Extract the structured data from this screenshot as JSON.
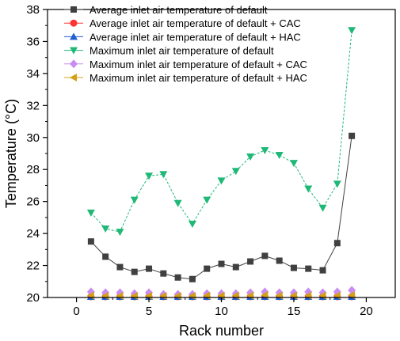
{
  "chart_data": {
    "type": "scatter",
    "xlabel": "Rack number",
    "ylabel": "Temperature (°C)",
    "xlim": [
      -2,
      22
    ],
    "ylim": [
      20,
      38
    ],
    "xticks": [
      0,
      5,
      10,
      15,
      20
    ],
    "yticks": [
      20,
      22,
      24,
      26,
      28,
      30,
      32,
      34,
      36,
      38
    ],
    "grid": false,
    "legend_position": "top-left",
    "series": [
      {
        "name": "Average inlet air temperature of default",
        "marker": "square",
        "color": "#404040",
        "connected": true,
        "x": [
          1,
          2,
          3,
          4,
          5,
          6,
          7,
          8,
          9,
          10,
          11,
          12,
          13,
          14,
          15,
          16,
          17,
          18,
          19
        ],
        "y": [
          23.5,
          22.55,
          21.9,
          21.6,
          21.8,
          21.5,
          21.25,
          21.15,
          21.8,
          22.1,
          21.9,
          22.25,
          22.6,
          22.3,
          21.85,
          21.8,
          21.7,
          23.4,
          30.1
        ]
      },
      {
        "name": "Average inlet air temperature of default + CAC",
        "marker": "circle",
        "color": "#ff3333",
        "connected": false,
        "x": [
          1,
          2,
          3,
          4,
          5,
          6,
          7,
          8,
          9,
          10,
          11,
          12,
          13,
          14,
          15,
          16,
          17,
          18,
          19
        ],
        "y": [
          20.05,
          20.05,
          20.05,
          20.05,
          20.05,
          20.05,
          20.05,
          20.05,
          20.05,
          20.05,
          20.05,
          20.05,
          20.05,
          20.05,
          20.05,
          20.05,
          20.05,
          20.05,
          20.05
        ]
      },
      {
        "name": "Average inlet air temperature of default + HAC",
        "marker": "triangle-up",
        "color": "#1f5fcf",
        "connected": false,
        "x": [
          1,
          2,
          3,
          4,
          5,
          6,
          7,
          8,
          9,
          10,
          11,
          12,
          13,
          14,
          15,
          16,
          17,
          18,
          19
        ],
        "y": [
          20.05,
          20.05,
          20.05,
          20.05,
          20.05,
          20.05,
          20.05,
          20.05,
          20.05,
          20.05,
          20.05,
          20.05,
          20.05,
          20.05,
          20.05,
          20.05,
          20.05,
          20.05,
          20.05
        ]
      },
      {
        "name": "Maximum inlet air temperature of default",
        "marker": "triangle-down",
        "color": "#1fb877",
        "connected": true,
        "x": [
          1,
          2,
          3,
          4,
          5,
          6,
          7,
          8,
          9,
          10,
          11,
          12,
          13,
          14,
          15,
          16,
          17,
          18,
          19
        ],
        "y": [
          25.3,
          24.3,
          24.1,
          26.1,
          27.6,
          27.7,
          25.9,
          24.6,
          26.1,
          27.3,
          27.9,
          28.8,
          29.2,
          28.9,
          28.4,
          26.8,
          25.6,
          27.1,
          36.7
        ]
      },
      {
        "name": "Maximum inlet air temperature of default + CAC",
        "marker": "diamond",
        "color": "#c98cf0",
        "connected": false,
        "x": [
          1,
          2,
          3,
          4,
          5,
          6,
          7,
          8,
          9,
          10,
          11,
          12,
          13,
          14,
          15,
          16,
          17,
          18,
          19
        ],
        "y": [
          20.35,
          20.3,
          20.3,
          20.25,
          20.3,
          20.2,
          20.2,
          20.2,
          20.25,
          20.25,
          20.25,
          20.3,
          20.35,
          20.3,
          20.3,
          20.35,
          20.3,
          20.35,
          20.45
        ]
      },
      {
        "name": "Maximum inlet air temperature of default + HAC",
        "marker": "triangle-left",
        "color": "#d4a017",
        "connected": false,
        "x": [
          1,
          2,
          3,
          4,
          5,
          6,
          7,
          8,
          9,
          10,
          11,
          12,
          13,
          14,
          15,
          16,
          17,
          18,
          19
        ],
        "y": [
          20.12,
          20.1,
          20.1,
          20.1,
          20.1,
          20.1,
          20.1,
          20.1,
          20.12,
          20.12,
          20.12,
          20.12,
          20.15,
          20.12,
          20.12,
          20.12,
          20.12,
          20.12,
          20.15
        ]
      }
    ]
  }
}
